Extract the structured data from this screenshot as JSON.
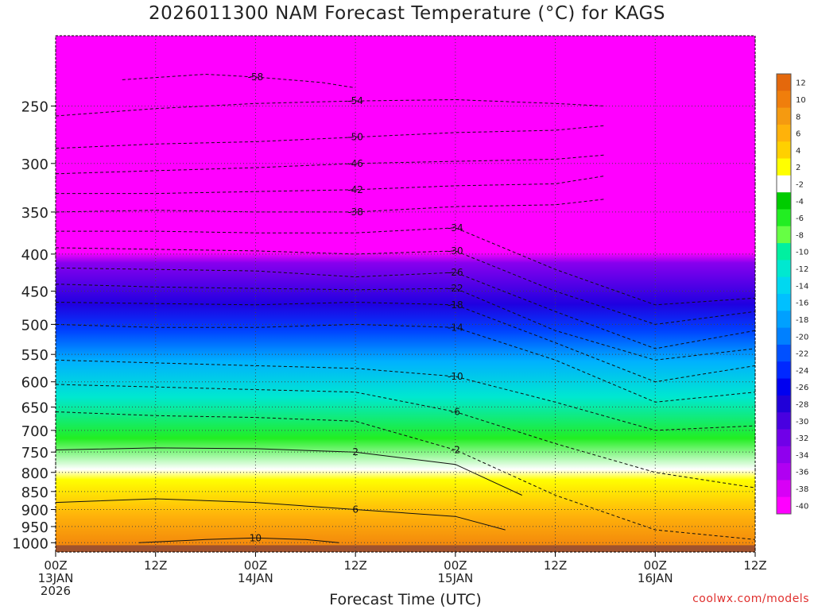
{
  "chart_data": {
    "type": "heatmap",
    "title": "2026011300 NAM Forecast Temperature (°C) for KAGS",
    "xlabel": "Forecast Time (UTC)",
    "ylabel": "",
    "y_scale": "log",
    "y_reversed": true,
    "ylim": [
      1030,
      200
    ],
    "y_ticks": [
      "250",
      "300",
      "350",
      "400",
      "450",
      "500",
      "550",
      "600",
      "650",
      "700",
      "750",
      "800",
      "850",
      "900",
      "950",
      "1000"
    ],
    "x_ticks": [
      {
        "hour": 0,
        "line1": "00Z",
        "line2": "13JAN",
        "line3": "2026"
      },
      {
        "hour": 12,
        "line1": "12Z",
        "line2": "",
        "line3": ""
      },
      {
        "hour": 24,
        "line1": "00Z",
        "line2": "14JAN",
        "line3": ""
      },
      {
        "hour": 36,
        "line1": "12Z",
        "line2": "",
        "line3": ""
      },
      {
        "hour": 48,
        "line1": "00Z",
        "line2": "15JAN",
        "line3": ""
      },
      {
        "hour": 60,
        "line1": "12Z",
        "line2": "",
        "line3": ""
      },
      {
        "hour": 72,
        "line1": "00Z",
        "line2": "16JAN",
        "line3": ""
      },
      {
        "hour": 84,
        "line1": "12Z",
        "line2": "",
        "line3": ""
      }
    ],
    "xlim": [
      0,
      84
    ],
    "grid": true,
    "colorbar": {
      "labels": [
        "12",
        "10",
        "8",
        "6",
        "4",
        "2",
        "-2",
        "-4",
        "-6",
        "-8",
        "-10",
        "-12",
        "-14",
        "-16",
        "-18",
        "-20",
        "-22",
        "-24",
        "-26",
        "-28",
        "-30",
        "-32",
        "-34",
        "-36",
        "-38",
        "-40"
      ],
      "colors": [
        "#e4680c",
        "#f07e0c",
        "#f59a10",
        "#ffb20a",
        "#ffd000",
        "#ffff00",
        "#ffffff",
        "#00cc00",
        "#22ee22",
        "#66ff44",
        "#00f0a0",
        "#00e8d0",
        "#00d8f0",
        "#00c0ff",
        "#00a0ff",
        "#0080ff",
        "#0050ff",
        "#0028ff",
        "#0000f0",
        "#2000d8",
        "#4800e0",
        "#7000e8",
        "#9000ee",
        "#b000f2",
        "#d800f6",
        "#ff00ff"
      ]
    },
    "contours": [
      {
        "label": "-54",
        "x": [
          0,
          12,
          24,
          36,
          48,
          60,
          66
        ],
        "y": [
          258,
          252,
          248,
          246,
          245,
          248,
          250
        ]
      },
      {
        "label": "-58",
        "x": [
          8,
          18,
          24,
          32,
          36
        ],
        "y": [
          230,
          226,
          228,
          232,
          236
        ]
      },
      {
        "label": "-50",
        "x": [
          0,
          12,
          24,
          36,
          48,
          60,
          66
        ],
        "y": [
          286,
          282,
          280,
          276,
          272,
          270,
          266
        ]
      },
      {
        "label": "-46",
        "x": [
          0,
          12,
          24,
          36,
          48,
          60,
          66
        ],
        "y": [
          310,
          307,
          304,
          300,
          298,
          296,
          292
        ]
      },
      {
        "label": "-42",
        "x": [
          0,
          12,
          24,
          36,
          48,
          60,
          66
        ],
        "y": [
          330,
          330,
          328,
          326,
          322,
          320,
          312
        ]
      },
      {
        "label": "-38",
        "x": [
          0,
          12,
          24,
          36,
          48,
          60,
          66
        ],
        "y": [
          350,
          348,
          350,
          350,
          344,
          342,
          336
        ]
      },
      {
        "label": "-34",
        "x": [
          0,
          12,
          24,
          36,
          48,
          60,
          72,
          84
        ],
        "y": [
          372,
          372,
          374,
          374,
          368,
          420,
          470,
          460
        ]
      },
      {
        "label": "-30",
        "x": [
          0,
          12,
          24,
          36,
          48,
          60,
          72,
          84
        ],
        "y": [
          392,
          394,
          396,
          400,
          396,
          450,
          500,
          480
        ]
      },
      {
        "label": "-26",
        "x": [
          0,
          12,
          24,
          36,
          48,
          60,
          72,
          84
        ],
        "y": [
          418,
          420,
          422,
          430,
          424,
          480,
          540,
          510
        ]
      },
      {
        "label": "-22",
        "x": [
          0,
          12,
          24,
          36,
          48,
          60,
          72,
          84
        ],
        "y": [
          440,
          444,
          446,
          448,
          446,
          510,
          560,
          540
        ]
      },
      {
        "label": "-18",
        "x": [
          0,
          12,
          24,
          36,
          48,
          60,
          72,
          84
        ],
        "y": [
          466,
          468,
          470,
          466,
          470,
          530,
          600,
          570
        ]
      },
      {
        "label": "-14",
        "x": [
          0,
          12,
          24,
          36,
          48,
          60,
          72,
          84
        ],
        "y": [
          500,
          505,
          505,
          500,
          505,
          560,
          640,
          620
        ]
      },
      {
        "label": "-10",
        "x": [
          0,
          12,
          24,
          36,
          48,
          60,
          72,
          84
        ],
        "y": [
          560,
          565,
          570,
          575,
          590,
          640,
          700,
          690
        ]
      },
      {
        "label": "-6",
        "x": [
          0,
          12,
          24,
          36,
          48,
          60,
          72,
          84
        ],
        "y": [
          605,
          610,
          615,
          620,
          660,
          730,
          800,
          840
        ]
      },
      {
        "label": "-2",
        "x": [
          0,
          12,
          24,
          36,
          48,
          60,
          72,
          84
        ],
        "y": [
          660,
          668,
          672,
          680,
          745,
          860,
          960,
          990
        ]
      },
      {
        "label": "2",
        "x": [
          0,
          12,
          24,
          36,
          48,
          56
        ],
        "y": [
          745,
          740,
          742,
          750,
          780,
          860
        ]
      },
      {
        "label": "6",
        "x": [
          0,
          12,
          24,
          36,
          48,
          54
        ],
        "y": [
          880,
          870,
          880,
          900,
          920,
          960
        ]
      },
      {
        "label": "10",
        "x": [
          10,
          18,
          24,
          30,
          34
        ],
        "y": [
          1000,
          990,
          985,
          990,
          1000
        ]
      }
    ]
  }
}
